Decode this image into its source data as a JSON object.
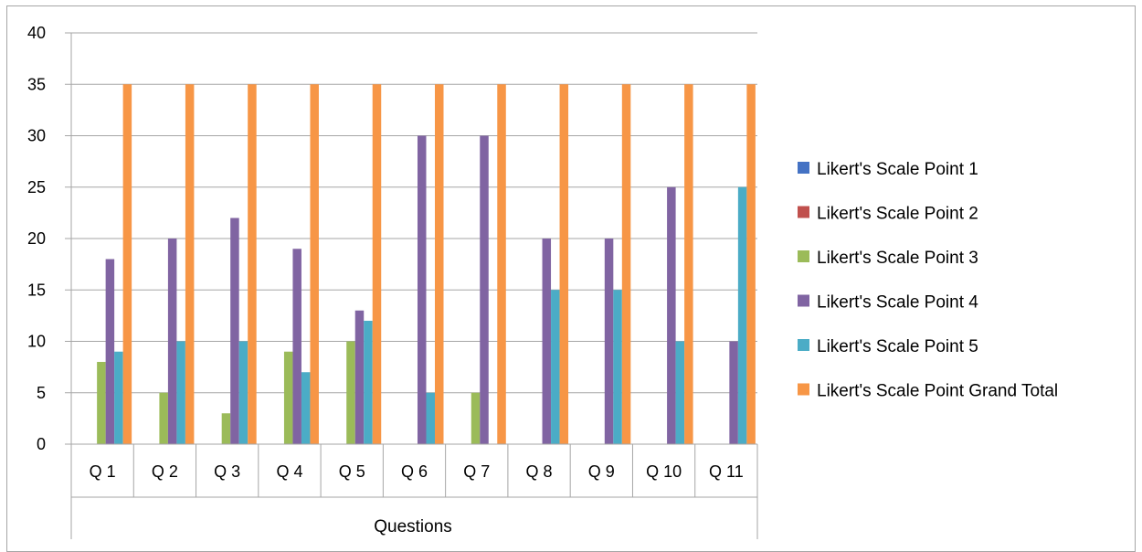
{
  "chart_data": {
    "type": "bar",
    "title": "",
    "xlabel": "Questions",
    "ylabel": "",
    "ylim": [
      0,
      40
    ],
    "yticks": [
      0,
      5,
      10,
      15,
      20,
      25,
      30,
      35,
      40
    ],
    "grid": true,
    "legend_position": "right",
    "categories": [
      "Q 1",
      "Q 2",
      "Q 3",
      "Q 4",
      "Q 5",
      "Q 6",
      "Q 7",
      "Q 8",
      "Q 9",
      "Q 10",
      "Q 11"
    ],
    "series": [
      {
        "name": "Likert's Scale Point 1",
        "color": "#4472c4",
        "values": [
          0,
          0,
          0,
          0,
          0,
          0,
          0,
          0,
          0,
          0,
          0
        ]
      },
      {
        "name": "Likert's Scale Point 2",
        "color": "#c0504d",
        "values": [
          0,
          0,
          0,
          0,
          0,
          0,
          0,
          0,
          0,
          0,
          0
        ]
      },
      {
        "name": "Likert's Scale Point 3",
        "color": "#9bbb59",
        "values": [
          8,
          5,
          3,
          9,
          10,
          0,
          5,
          0,
          0,
          0,
          0
        ]
      },
      {
        "name": "Likert's Scale Point 4",
        "color": "#8064a2",
        "values": [
          18,
          20,
          22,
          19,
          13,
          30,
          30,
          20,
          20,
          25,
          10
        ]
      },
      {
        "name": "Likert's Scale Point 5",
        "color": "#4bacc6",
        "values": [
          9,
          10,
          10,
          7,
          12,
          5,
          0,
          15,
          15,
          10,
          25
        ]
      },
      {
        "name": "Likert's Scale Point Grand Total",
        "color": "#f79646",
        "values": [
          35,
          35,
          35,
          35,
          35,
          35,
          35,
          35,
          35,
          35,
          35
        ]
      }
    ]
  }
}
